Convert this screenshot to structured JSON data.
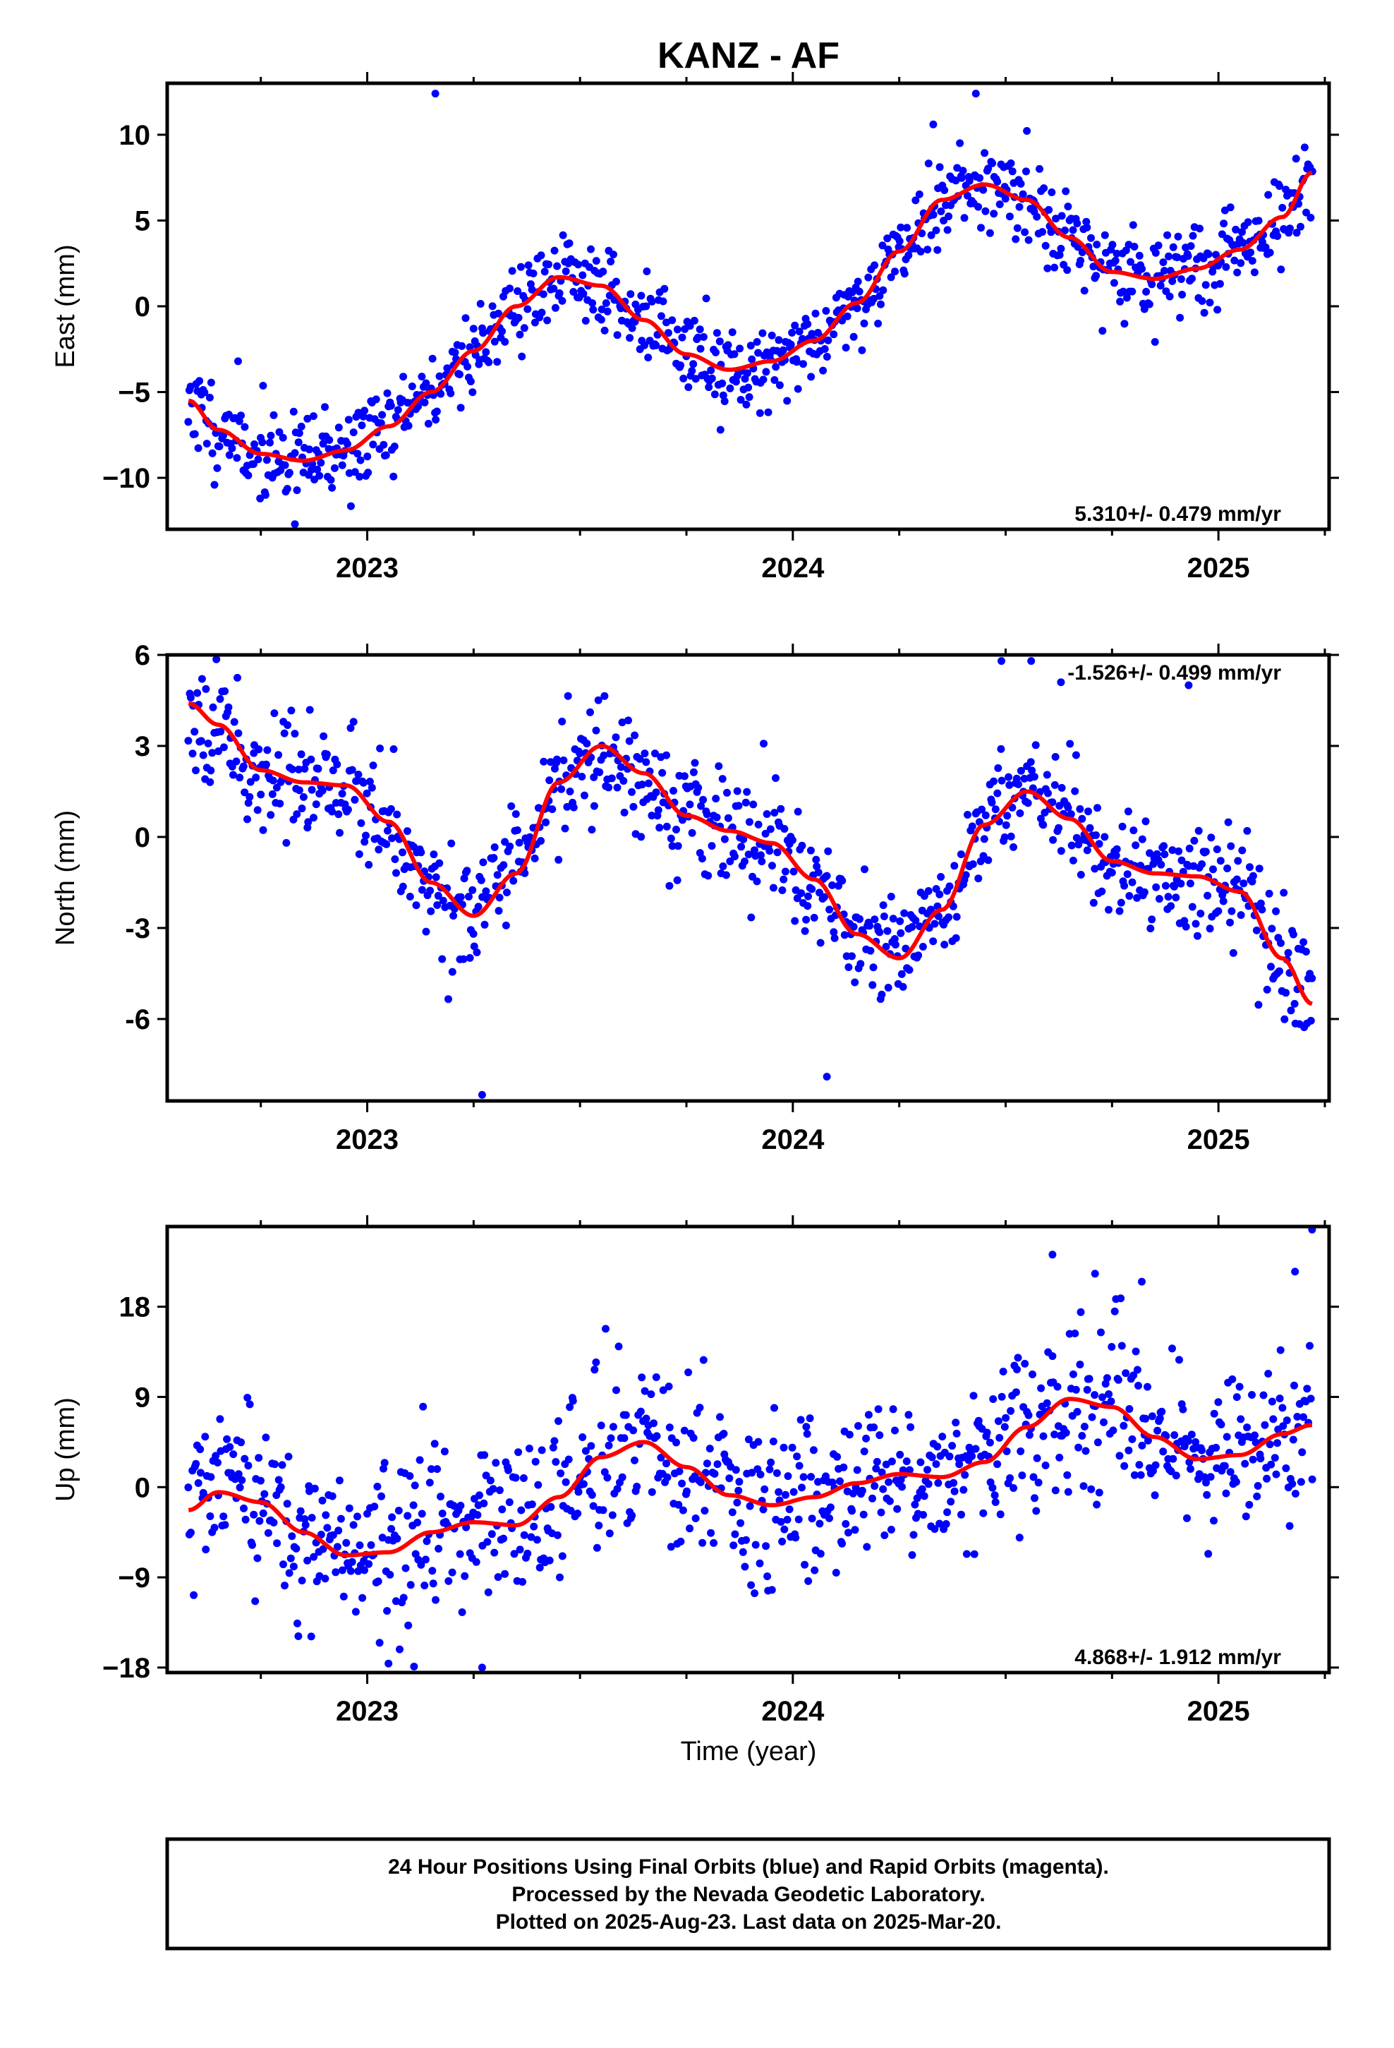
{
  "figure": {
    "title": "KANZ - AF",
    "xlabel": "Time (year)",
    "footer_lines": [
      "24 Hour Positions Using Final Orbits (blue) and Rapid Orbits (magenta).",
      "Processed by the Nevada Geodetic Laboratory.",
      "Plotted on 2025-Aug-23. Last data on 2025-Mar-20."
    ],
    "colors": {
      "points": "#0000ff",
      "fit": "#ff0000",
      "frame": "#000000"
    }
  },
  "chart_data": [
    {
      "type": "scatter",
      "ylabel": "East (mm)",
      "rate_label": "5.310+/- 0.479 mm/yr",
      "rate_position": "bottom-right",
      "xlim": [
        2022.53,
        2025.26
      ],
      "ylim": [
        -13,
        13
      ],
      "yticks": [
        -10,
        -5,
        0,
        5,
        10
      ],
      "ytick_labels": [
        "−10",
        "−5",
        "0",
        "5",
        "10"
      ],
      "xticks": [
        2023,
        2024,
        2025
      ],
      "xtick_labels": [
        "2023",
        "2024",
        "2025"
      ],
      "minor_xticks": [
        2022.75,
        2023.25,
        2023.5,
        2023.75,
        2024.25,
        2024.5,
        2024.75,
        2025.25
      ],
      "fit_trend": [
        [
          2022.58,
          -5.5
        ],
        [
          2022.65,
          -7.2
        ],
        [
          2022.75,
          -8.6
        ],
        [
          2022.85,
          -9.0
        ],
        [
          2022.95,
          -8.4
        ],
        [
          2023.05,
          -7.0
        ],
        [
          2023.15,
          -5.0
        ],
        [
          2023.25,
          -2.6
        ],
        [
          2023.35,
          0.0
        ],
        [
          2023.45,
          1.7
        ],
        [
          2023.55,
          1.2
        ],
        [
          2023.65,
          -0.8
        ],
        [
          2023.75,
          -2.8
        ],
        [
          2023.85,
          -3.7
        ],
        [
          2023.95,
          -3.2
        ],
        [
          2024.05,
          -2.0
        ],
        [
          2024.15,
          0.2
        ],
        [
          2024.25,
          3.2
        ],
        [
          2024.35,
          6.2
        ],
        [
          2024.45,
          7.1
        ],
        [
          2024.55,
          6.2
        ],
        [
          2024.65,
          4.0
        ],
        [
          2024.75,
          2.0
        ],
        [
          2024.85,
          1.6
        ],
        [
          2024.95,
          2.2
        ],
        [
          2025.05,
          3.3
        ],
        [
          2025.15,
          5.2
        ],
        [
          2025.22,
          7.8
        ]
      ],
      "scatter": {
        "sd": 1.3,
        "seed": 11,
        "outliers": [
          [
            2023.16,
            12.4
          ],
          [
            2022.83,
            -12.7
          ],
          [
            2023.83,
            -7.2
          ],
          [
            2024.43,
            12.4
          ],
          [
            2024.33,
            10.6
          ]
        ]
      }
    },
    {
      "type": "scatter",
      "ylabel": "North (mm)",
      "rate_label": "-1.526+/- 0.499 mm/yr",
      "rate_position": "top-right",
      "xlim": [
        2022.53,
        2025.26
      ],
      "ylim": [
        -8.7,
        6
      ],
      "yticks": [
        -6,
        -3,
        0,
        3,
        6
      ],
      "ytick_labels": [
        "-6",
        "-3",
        "0",
        "3",
        "6"
      ],
      "xticks": [
        2023,
        2024,
        2025
      ],
      "xtick_labels": [
        "2023",
        "2024",
        "2025"
      ],
      "minor_xticks": [
        2022.75,
        2023.25,
        2023.5,
        2023.75,
        2024.25,
        2024.5,
        2024.75,
        2025.25
      ],
      "fit_trend": [
        [
          2022.58,
          4.4
        ],
        [
          2022.65,
          3.7
        ],
        [
          2022.75,
          2.2
        ],
        [
          2022.85,
          1.8
        ],
        [
          2022.95,
          1.7
        ],
        [
          2023.05,
          0.5
        ],
        [
          2023.15,
          -1.5
        ],
        [
          2023.25,
          -2.6
        ],
        [
          2023.35,
          -1.2
        ],
        [
          2023.45,
          1.8
        ],
        [
          2023.55,
          3.0
        ],
        [
          2023.65,
          2.1
        ],
        [
          2023.75,
          0.7
        ],
        [
          2023.85,
          0.2
        ],
        [
          2023.95,
          -0.2
        ],
        [
          2024.05,
          -1.4
        ],
        [
          2024.15,
          -3.2
        ],
        [
          2024.25,
          -4.0
        ],
        [
          2024.35,
          -2.4
        ],
        [
          2024.45,
          0.4
        ],
        [
          2024.55,
          1.5
        ],
        [
          2024.65,
          0.6
        ],
        [
          2024.75,
          -0.8
        ],
        [
          2024.85,
          -1.2
        ],
        [
          2024.95,
          -1.3
        ],
        [
          2025.05,
          -1.8
        ],
        [
          2025.15,
          -4.0
        ],
        [
          2025.22,
          -5.5
        ]
      ],
      "scatter": {
        "sd": 0.95,
        "seed": 23,
        "outliers": [
          [
            2023.27,
            -8.5
          ],
          [
            2024.08,
            -7.9
          ],
          [
            2024.49,
            5.8
          ],
          [
            2024.56,
            5.8
          ],
          [
            2024.93,
            5.0
          ],
          [
            2024.63,
            5.1
          ]
        ]
      }
    },
    {
      "type": "scatter",
      "ylabel": "Up (mm)",
      "rate_label": "4.868+/- 1.912 mm/yr",
      "rate_position": "bottom-right",
      "xlim": [
        2022.53,
        2025.26
      ],
      "ylim": [
        -18.5,
        26
      ],
      "yticks": [
        -18,
        -9,
        0,
        9,
        18
      ],
      "ytick_labels": [
        "−18",
        "−9",
        "0",
        "9",
        "18"
      ],
      "xticks": [
        2023,
        2024,
        2025
      ],
      "xtick_labels": [
        "2023",
        "2024",
        "2025"
      ],
      "minor_xticks": [
        2022.75,
        2023.25,
        2023.5,
        2023.75,
        2024.25,
        2024.5,
        2024.75,
        2025.25
      ],
      "fit_trend": [
        [
          2022.58,
          -2.3
        ],
        [
          2022.65,
          -0.5
        ],
        [
          2022.75,
          -1.5
        ],
        [
          2022.85,
          -4.5
        ],
        [
          2022.95,
          -6.8
        ],
        [
          2023.05,
          -6.5
        ],
        [
          2023.15,
          -4.5
        ],
        [
          2023.25,
          -3.5
        ],
        [
          2023.35,
          -3.8
        ],
        [
          2023.45,
          -1.0
        ],
        [
          2023.55,
          3.0
        ],
        [
          2023.65,
          4.5
        ],
        [
          2023.75,
          2.0
        ],
        [
          2023.85,
          -0.8
        ],
        [
          2023.95,
          -1.8
        ],
        [
          2024.05,
          -1.0
        ],
        [
          2024.15,
          0.4
        ],
        [
          2024.25,
          1.3
        ],
        [
          2024.35,
          1.0
        ],
        [
          2024.45,
          2.5
        ],
        [
          2024.55,
          6.0
        ],
        [
          2024.65,
          8.8
        ],
        [
          2024.75,
          8.0
        ],
        [
          2024.85,
          5.0
        ],
        [
          2024.95,
          2.8
        ],
        [
          2025.05,
          3.2
        ],
        [
          2025.15,
          5.3
        ],
        [
          2025.22,
          6.2
        ]
      ],
      "scatter": {
        "sd": 4.2,
        "seed": 37,
        "outliers": [
          [
            2025.22,
            25.7
          ],
          [
            2024.61,
            23.2
          ],
          [
            2024.71,
            21.3
          ],
          [
            2025.18,
            21.5
          ],
          [
            2024.82,
            20.5
          ],
          [
            2023.27,
            -18.0
          ],
          [
            2023.05,
            -17.6
          ],
          [
            2023.11,
            -17.9
          ]
        ]
      }
    }
  ]
}
